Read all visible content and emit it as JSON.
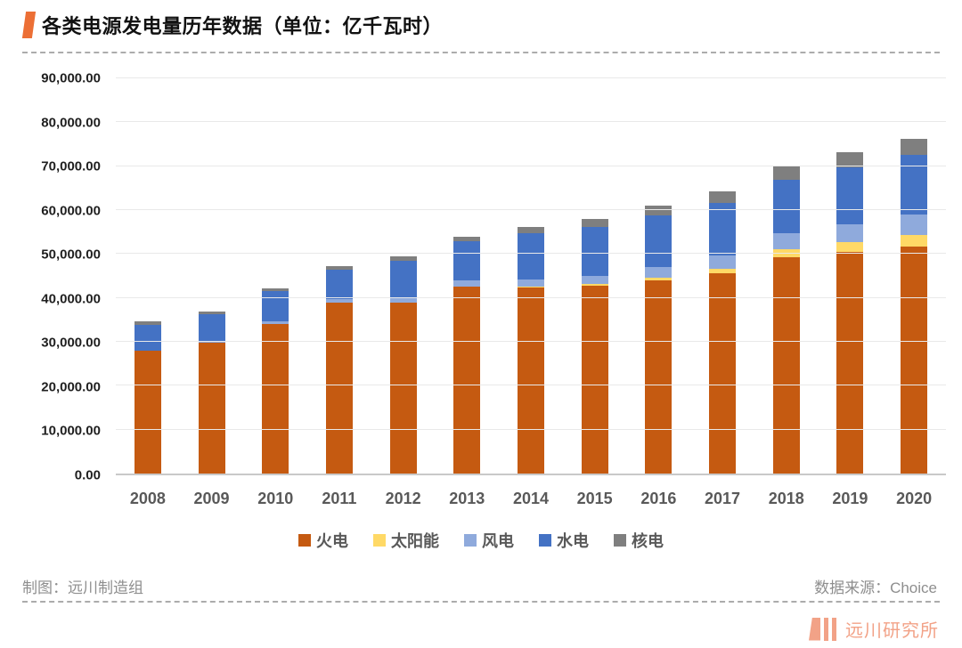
{
  "title": "各类电源发电量历年数据（单位：亿千瓦时）",
  "chart_data": {
    "type": "bar",
    "stacked": true,
    "title": "各类电源发电量历年数据",
    "unit": "亿千瓦时",
    "categories": [
      "2008",
      "2009",
      "2010",
      "2011",
      "2012",
      "2013",
      "2014",
      "2015",
      "2016",
      "2017",
      "2018",
      "2019",
      "2020"
    ],
    "series": [
      {
        "name": "火电",
        "color": "#C55A11",
        "values": [
          27900,
          29828,
          34145,
          39003,
          38928,
          42470,
          42337,
          42842,
          43958,
          45513,
          49249,
          50465,
          51743
        ]
      },
      {
        "name": "太阳能",
        "color": "#FFD966",
        "values": [
          0,
          0,
          1,
          6,
          36,
          84,
          235,
          395,
          665,
          1178,
          1775,
          2243,
          2611
        ]
      },
      {
        "name": "风电",
        "color": "#8FAADC",
        "values": [
          131,
          276,
          501,
          741,
          1030,
          1412,
          1598,
          1858,
          2409,
          3057,
          3660,
          4057,
          4665
        ]
      },
      {
        "name": "水电",
        "color": "#4472C4",
        "values": [
          5852,
          6156,
          6867,
          6681,
          8556,
          8921,
          10601,
          11127,
          11815,
          11979,
          12317,
          13021,
          13553
        ]
      },
      {
        "name": "核电",
        "color": "#7F7F7F",
        "values": [
          692,
          701,
          747,
          872,
          983,
          1116,
          1332,
          1714,
          2132,
          2481,
          2944,
          3483,
          3662
        ]
      }
    ],
    "ylim": [
      0,
      90000
    ],
    "ytick_step": 10000,
    "ytick_labels": [
      "0.00",
      "10,000.00",
      "20,000.00",
      "30,000.00",
      "40,000.00",
      "50,000.00",
      "60,000.00",
      "70,000.00",
      "80,000.00",
      "90,000.00"
    ],
    "grid": true,
    "legend_position": "bottom"
  },
  "footer": {
    "left": "制图：远川制造组",
    "right": "数据来源：Choice"
  },
  "branding": {
    "name": "远川研究所",
    "color": "#F2A287"
  },
  "colors": {
    "accent": "#EC6F35"
  }
}
